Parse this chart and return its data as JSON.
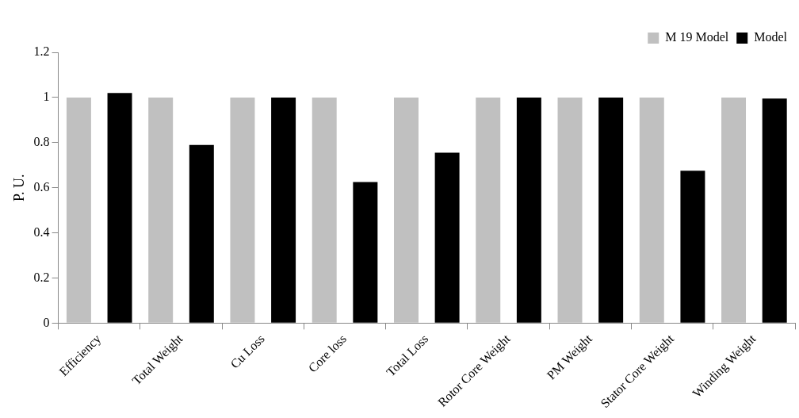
{
  "chart_data": {
    "type": "bar",
    "ylabel": "P. U.",
    "categories": [
      "Efficiency",
      "Total Weight",
      "Cu Loss",
      "Core loss",
      "Total Loss",
      "Rotor Core Weight",
      "PM Weight",
      "Stator Core Weight",
      "Winding Weight"
    ],
    "series": [
      {
        "name": "M 19 Model",
        "color": "#c0c0c0",
        "values": [
          1,
          1,
          1,
          1,
          1,
          1,
          1,
          1,
          1
        ]
      },
      {
        "name": "Model",
        "color": "#000000",
        "values": [
          1.02,
          0.79,
          1,
          0.625,
          0.755,
          1,
          1,
          0.675,
          0.995
        ]
      }
    ],
    "ylim": [
      0,
      1.2
    ],
    "yticks": [
      0,
      0.2,
      0.4,
      0.6,
      0.8,
      1,
      1.2
    ],
    "grid": false,
    "legend": "top right"
  }
}
